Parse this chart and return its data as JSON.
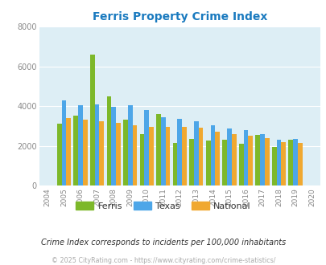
{
  "title": "Ferris Property Crime Index",
  "years": [
    2004,
    2005,
    2006,
    2007,
    2008,
    2009,
    2010,
    2011,
    2012,
    2013,
    2014,
    2015,
    2016,
    2017,
    2018,
    2019,
    2020
  ],
  "ferris": [
    null,
    3100,
    3500,
    6600,
    4500,
    3300,
    2600,
    3600,
    2150,
    2350,
    2250,
    2300,
    2100,
    2550,
    1950,
    2300,
    null
  ],
  "texas": [
    null,
    4300,
    4050,
    4100,
    3950,
    4050,
    3800,
    3450,
    3350,
    3250,
    3050,
    2850,
    2800,
    2600,
    2300,
    2350,
    null
  ],
  "national": [
    null,
    3400,
    3300,
    3250,
    3150,
    3050,
    2950,
    2950,
    2950,
    2900,
    2700,
    2600,
    2500,
    2400,
    2200,
    2150,
    null
  ],
  "ferris_color": "#7db82a",
  "texas_color": "#4da6e8",
  "national_color": "#f0a830",
  "plot_bg": "#ddeef5",
  "ylim": [
    0,
    8000
  ],
  "yticks": [
    0,
    2000,
    4000,
    6000,
    8000
  ],
  "subtitle": "Crime Index corresponds to incidents per 100,000 inhabitants",
  "footer": "© 2025 CityRating.com - https://www.cityrating.com/crime-statistics/",
  "title_color": "#1a7abf",
  "subtitle_color": "#333333",
  "footer_color": "#aaaaaa",
  "grid_color": "#ffffff"
}
